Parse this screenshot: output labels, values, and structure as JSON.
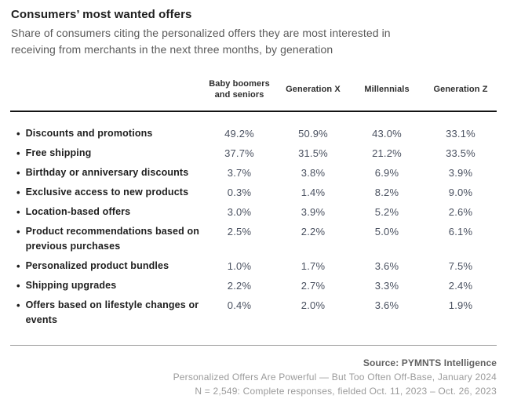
{
  "header": {
    "title": "Consumers’ most wanted offers",
    "subtitle": "Share of consumers citing the personalized offers they are most interested in receiving from merchants in the next three months, by generation"
  },
  "chart_data": {
    "type": "table",
    "title": "Consumers’ most wanted offers",
    "columns": [
      "Baby boomers and seniors",
      "Generation X",
      "Millennials",
      "Generation Z"
    ],
    "rows": [
      {
        "label": "Discounts and promotions",
        "values": [
          "49.2%",
          "50.9%",
          "43.0%",
          "33.1%"
        ]
      },
      {
        "label": "Free shipping",
        "values": [
          "37.7%",
          "31.5%",
          "21.2%",
          "33.5%"
        ]
      },
      {
        "label": "Birthday or anniversary discounts",
        "values": [
          "3.7%",
          "3.8%",
          "6.9%",
          "3.9%"
        ]
      },
      {
        "label": "Exclusive access to new products",
        "values": [
          "0.3%",
          "1.4%",
          "8.2%",
          "9.0%"
        ]
      },
      {
        "label": "Location-based offers",
        "values": [
          "3.0%",
          "3.9%",
          "5.2%",
          "2.6%"
        ]
      },
      {
        "label": "Product recommendations based on previous purchases",
        "values": [
          "2.5%",
          "2.2%",
          "5.0%",
          "6.1%"
        ]
      },
      {
        "label": "Personalized product bundles",
        "values": [
          "1.0%",
          "1.7%",
          "3.6%",
          "7.5%"
        ]
      },
      {
        "label": "Shipping upgrades",
        "values": [
          "2.2%",
          "2.7%",
          "3.3%",
          "2.4%"
        ]
      },
      {
        "label": "Offers based on lifestyle changes or events",
        "values": [
          "0.4%",
          "2.0%",
          "3.6%",
          "1.9%"
        ]
      }
    ]
  },
  "footer": {
    "source": "Source: PYMNTS Intelligence",
    "report": "Personalized Offers Are Powerful — But Too Often Off-Base, January 2024",
    "sample": "N = 2,549: Complete responses, fielded Oct. 11, 2023 – Oct. 26, 2023"
  },
  "colors": {
    "title_text": "#1f1f1f",
    "subtitle_text": "#5a5a5a",
    "value_text": "#4a5160",
    "heavy_rule": "#141414",
    "light_rule": "#9a9a9a",
    "footer_source_text": "#606060",
    "footer_text": "#9b9b9b"
  }
}
